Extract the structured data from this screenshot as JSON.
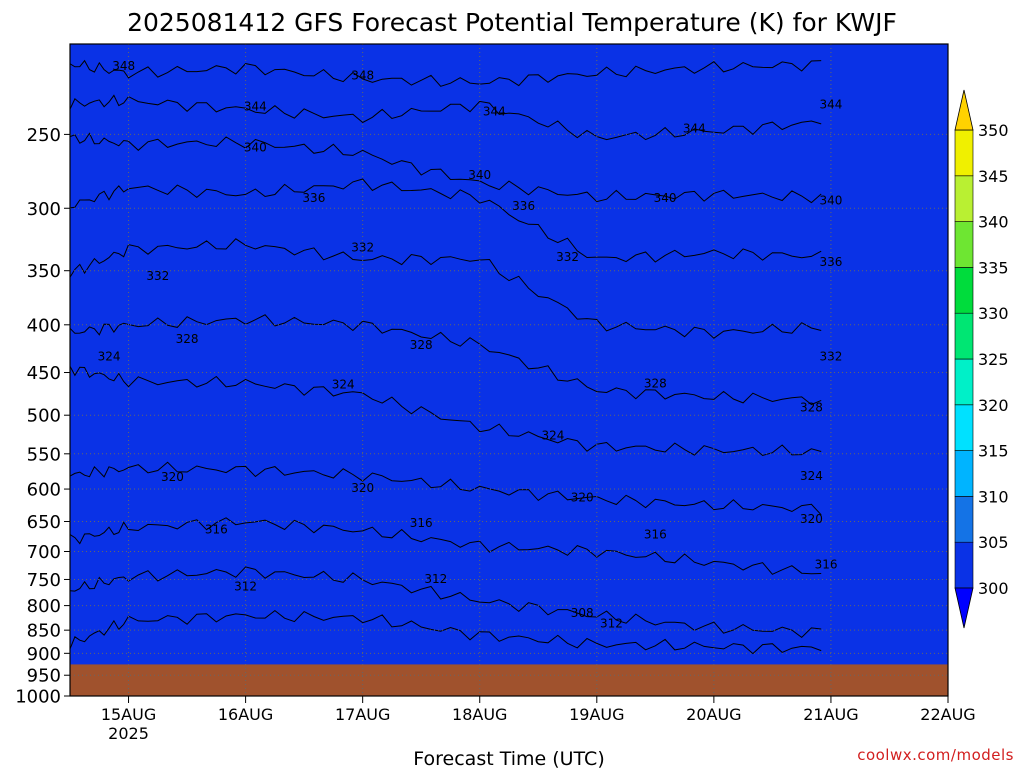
{
  "chart_data": {
    "type": "heatmap",
    "title": "2025081412 GFS Forecast Potential Temperature (K) for KWJF",
    "xlabel": "Forecast Time (UTC)",
    "watermark": "coolwx.com/models",
    "x_ticks": [
      "15AUG",
      "16AUG",
      "17AUG",
      "18AUG",
      "19AUG",
      "20AUG",
      "21AUG",
      "22AUG"
    ],
    "x_tick_year": "2025",
    "xlim": [
      "2025-08-14T12",
      "2025-08-22T00"
    ],
    "y_ticks": [
      "250",
      "300",
      "350",
      "400",
      "450",
      "500",
      "550",
      "600",
      "650",
      "700",
      "750",
      "800",
      "850",
      "900",
      "950",
      "1000"
    ],
    "ylim": [
      1000,
      200
    ],
    "surface_pressure": 925,
    "colorbar": {
      "levels": [
        300,
        305,
        310,
        315,
        320,
        325,
        330,
        335,
        340,
        345,
        350
      ],
      "labels": [
        "300",
        "305",
        "310",
        "315",
        "320",
        "325",
        "330",
        "335",
        "340",
        "345",
        "350"
      ],
      "colors": [
        "#0000ff",
        "#0a32e6",
        "#1473e6",
        "#00b4ff",
        "#00e1ff",
        "#00f0c8",
        "#00e673",
        "#00dc3c",
        "#6ee632",
        "#b9f032",
        "#f0f000",
        "#ffd200"
      ]
    },
    "isentropes": [
      {
        "value": 348,
        "pressure": [
          210,
          215,
          212,
          218,
          220,
          215,
          212,
          210
        ]
      },
      {
        "value": 344,
        "pressure": [
          232,
          230,
          235,
          240,
          232,
          252,
          248,
          242
        ]
      },
      {
        "value": 340,
        "pressure": [
          252,
          256,
          255,
          262,
          282,
          292,
          290,
          292
        ]
      },
      {
        "value": 336,
        "pressure": [
          298,
          285,
          290,
          282,
          292,
          340,
          335,
          338
        ]
      },
      {
        "value": 332,
        "pressure": [
          352,
          332,
          328,
          340,
          340,
          400,
          408,
          402
        ]
      },
      {
        "value": 328,
        "pressure": [
          408,
          400,
          395,
          400,
          420,
          470,
          478,
          482
        ]
      },
      {
        "value": 324,
        "pressure": [
          445,
          460,
          462,
          475,
          515,
          540,
          545,
          548
        ]
      },
      {
        "value": 320,
        "pressure": [
          580,
          570,
          572,
          580,
          600,
          615,
          625,
          630
        ]
      },
      {
        "value": 316,
        "pressure": [
          680,
          660,
          650,
          665,
          690,
          700,
          720,
          740
        ]
      },
      {
        "value": 312,
        "pressure": [
          770,
          745,
          735,
          750,
          790,
          820,
          845,
          855
        ]
      },
      {
        "value": 308,
        "pressure": [
          880,
          830,
          820,
          825,
          860,
          880,
          885,
          890
        ]
      }
    ],
    "contour_labels": [
      {
        "value": "348",
        "x": "2025-08-14T23",
        "p": 211
      },
      {
        "value": "348",
        "x": "2025-08-17T00",
        "p": 216
      },
      {
        "value": "344",
        "x": "2025-08-16T02",
        "p": 233
      },
      {
        "value": "344",
        "x": "2025-08-18T03",
        "p": 236
      },
      {
        "value": "344",
        "x": "2025-08-19T20",
        "p": 246
      },
      {
        "value": "344",
        "x": "2025-08-21T00",
        "p": 232
      },
      {
        "value": "340",
        "x": "2025-08-16T02",
        "p": 258
      },
      {
        "value": "340",
        "x": "2025-08-18T00",
        "p": 276
      },
      {
        "value": "340",
        "x": "2025-08-19T14",
        "p": 292
      },
      {
        "value": "340",
        "x": "2025-08-21T00",
        "p": 294
      },
      {
        "value": "336",
        "x": "2025-08-16T14",
        "p": 292
      },
      {
        "value": "336",
        "x": "2025-08-18T09",
        "p": 298
      },
      {
        "value": "336",
        "x": "2025-08-21T00",
        "p": 342
      },
      {
        "value": "332",
        "x": "2025-08-15T06",
        "p": 354
      },
      {
        "value": "332",
        "x": "2025-08-17T00",
        "p": 330
      },
      {
        "value": "332",
        "x": "2025-08-18T18",
        "p": 338
      },
      {
        "value": "332",
        "x": "2025-08-21T00",
        "p": 432
      },
      {
        "value": "328",
        "x": "2025-08-15T12",
        "p": 414
      },
      {
        "value": "328",
        "x": "2025-08-17T12",
        "p": 420
      },
      {
        "value": "328",
        "x": "2025-08-19T12",
        "p": 462
      },
      {
        "value": "328",
        "x": "2025-08-20T20",
        "p": 490
      },
      {
        "value": "324",
        "x": "2025-08-14T20",
        "p": 432
      },
      {
        "value": "324",
        "x": "2025-08-16T20",
        "p": 463
      },
      {
        "value": "324",
        "x": "2025-08-18T15",
        "p": 525
      },
      {
        "value": "324",
        "x": "2025-08-20T20",
        "p": 580
      },
      {
        "value": "320",
        "x": "2025-08-15T09",
        "p": 582
      },
      {
        "value": "320",
        "x": "2025-08-17T00",
        "p": 598
      },
      {
        "value": "320",
        "x": "2025-08-18T21",
        "p": 612
      },
      {
        "value": "320",
        "x": "2025-08-20T20",
        "p": 645
      },
      {
        "value": "316",
        "x": "2025-08-15T18",
        "p": 662
      },
      {
        "value": "316",
        "x": "2025-08-17T12",
        "p": 652
      },
      {
        "value": "316",
        "x": "2025-08-19T12",
        "p": 670
      },
      {
        "value": "316",
        "x": "2025-08-20T23",
        "p": 722
      },
      {
        "value": "312",
        "x": "2025-08-16T00",
        "p": 762
      },
      {
        "value": "312",
        "x": "2025-08-17T15",
        "p": 748
      },
      {
        "value": "312",
        "x": "2025-08-19T03",
        "p": 835
      },
      {
        "value": "308",
        "x": "2025-08-18T21",
        "p": 814
      }
    ]
  }
}
